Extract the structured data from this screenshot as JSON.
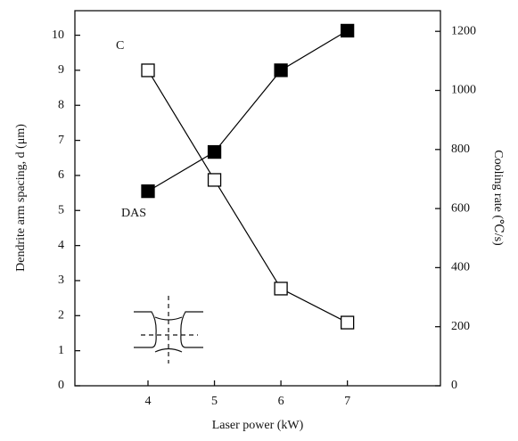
{
  "chart_data": {
    "type": "line",
    "x_label": "Laser power (kW)",
    "y_label": "Dendrite arm spacing, d (μm)",
    "y2_label": "Cooling rate (℃/s)",
    "x": [
      4,
      5,
      6,
      7
    ],
    "series": [
      {
        "name": "DAS",
        "color": "#000000",
        "marker": "filled-square",
        "values": [
          5.55,
          6.67,
          9.0,
          10.13
        ]
      },
      {
        "name": "C",
        "color": "#000000",
        "marker": "open-square",
        "axis": "y2",
        "values": [
          1068,
          697,
          329,
          214
        ]
      }
    ],
    "xlim": [
      2.9,
      8.4
    ],
    "xticks": [
      4,
      5,
      6,
      7
    ],
    "ylim": [
      0,
      10.7
    ],
    "yticks": [
      0,
      1,
      2,
      3,
      4,
      5,
      6,
      7,
      8,
      9,
      10
    ],
    "y2lim": [
      0,
      1270
    ],
    "y2ticks": [
      0,
      200,
      400,
      600,
      800,
      1000,
      1200
    ],
    "grid": false
  }
}
